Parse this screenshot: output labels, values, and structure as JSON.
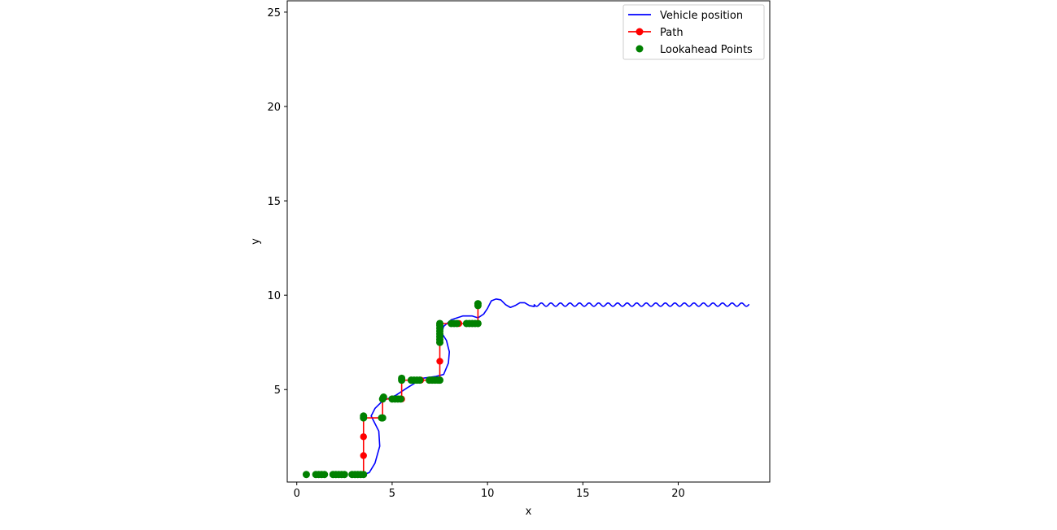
{
  "chart_data": {
    "type": "line",
    "xlabel": "x",
    "ylabel": "y",
    "xlim": [
      -0.5,
      24.8
    ],
    "ylim": [
      0.1,
      25.6
    ],
    "x_ticks": [
      0,
      5,
      10,
      15,
      20
    ],
    "y_ticks": [
      5,
      10,
      15,
      20,
      25
    ],
    "x_tick_labels": [
      "0",
      "5",
      "10",
      "15",
      "20"
    ],
    "y_tick_labels": [
      "5",
      "10",
      "15",
      "20",
      "25"
    ],
    "grid": false,
    "legend_position": "top-right",
    "legend": [
      {
        "label": "Vehicle position",
        "color": "#0000ff",
        "marker": "line"
      },
      {
        "label": "Path",
        "color": "#ff0000",
        "marker": "line-dot"
      },
      {
        "label": "Lookahead Points",
        "color": "#008000",
        "marker": "dot"
      }
    ],
    "series": [
      {
        "name": "Vehicle position",
        "color": "#0000ff",
        "kind": "line",
        "points": [
          [
            3.5,
            0.5
          ],
          [
            3.8,
            0.6
          ],
          [
            4.1,
            1.1
          ],
          [
            4.35,
            2.0
          ],
          [
            4.3,
            2.8
          ],
          [
            4.05,
            3.3
          ],
          [
            3.9,
            3.6
          ],
          [
            4.1,
            4.0
          ],
          [
            4.5,
            4.4
          ],
          [
            5.2,
            4.7
          ],
          [
            5.8,
            5.1
          ],
          [
            6.6,
            5.6
          ],
          [
            7.3,
            5.7
          ],
          [
            7.7,
            5.8
          ],
          [
            7.95,
            6.4
          ],
          [
            8.0,
            7.0
          ],
          [
            7.85,
            7.6
          ],
          [
            7.6,
            8.0
          ],
          [
            7.7,
            8.35
          ],
          [
            8.1,
            8.7
          ],
          [
            8.7,
            8.9
          ],
          [
            9.2,
            8.9
          ],
          [
            9.5,
            8.8
          ],
          [
            9.8,
            9.0
          ],
          [
            10.0,
            9.3
          ],
          [
            10.2,
            9.7
          ],
          [
            10.45,
            9.8
          ],
          [
            10.7,
            9.75
          ],
          [
            10.95,
            9.5
          ],
          [
            11.2,
            9.35
          ],
          [
            11.45,
            9.45
          ],
          [
            11.7,
            9.6
          ],
          [
            11.95,
            9.6
          ],
          [
            12.2,
            9.45
          ],
          [
            12.45,
            9.4
          ]
        ],
        "oscillation": {
          "x_start": 12.45,
          "x_end": 23.7,
          "mean": 9.5,
          "amplitude": 0.09,
          "period": 0.5
        }
      },
      {
        "name": "Path",
        "color": "#ff0000",
        "kind": "line-dot",
        "points": [
          [
            3.5,
            0.5
          ],
          [
            3.5,
            1.5
          ],
          [
            3.5,
            2.5
          ],
          [
            3.5,
            3.5
          ],
          [
            4.5,
            3.5
          ],
          [
            4.5,
            4.5
          ],
          [
            5.5,
            4.5
          ],
          [
            5.5,
            5.5
          ],
          [
            6.5,
            5.5
          ],
          [
            7.5,
            5.5
          ],
          [
            7.5,
            6.5
          ],
          [
            7.5,
            7.5
          ],
          [
            7.5,
            8.5
          ],
          [
            8.5,
            8.5
          ],
          [
            9.5,
            8.5
          ],
          [
            9.5,
            9.5
          ]
        ]
      },
      {
        "name": "Lookahead Points",
        "color": "#008000",
        "kind": "scatter",
        "points": [
          [
            0.5,
            0.5
          ],
          [
            1.0,
            0.5
          ],
          [
            1.15,
            0.5
          ],
          [
            1.3,
            0.5
          ],
          [
            1.45,
            0.5
          ],
          [
            1.9,
            0.5
          ],
          [
            2.05,
            0.5
          ],
          [
            2.2,
            0.5
          ],
          [
            2.35,
            0.5
          ],
          [
            2.5,
            0.5
          ],
          [
            2.9,
            0.5
          ],
          [
            3.05,
            0.5
          ],
          [
            3.2,
            0.5
          ],
          [
            3.35,
            0.5
          ],
          [
            3.5,
            0.5
          ],
          [
            3.5,
            3.5
          ],
          [
            3.5,
            3.6
          ],
          [
            4.45,
            3.5
          ],
          [
            4.5,
            3.5
          ],
          [
            4.5,
            4.5
          ],
          [
            4.55,
            4.6
          ],
          [
            5.0,
            4.5
          ],
          [
            5.15,
            4.5
          ],
          [
            5.3,
            4.5
          ],
          [
            5.45,
            4.5
          ],
          [
            5.5,
            5.5
          ],
          [
            5.5,
            5.6
          ],
          [
            6.0,
            5.5
          ],
          [
            6.15,
            5.5
          ],
          [
            6.3,
            5.5
          ],
          [
            6.45,
            5.5
          ],
          [
            6.95,
            5.5
          ],
          [
            7.1,
            5.5
          ],
          [
            7.25,
            5.5
          ],
          [
            7.4,
            5.5
          ],
          [
            7.5,
            5.5
          ],
          [
            7.5,
            7.5
          ],
          [
            7.5,
            7.65
          ],
          [
            7.5,
            7.8
          ],
          [
            7.5,
            7.95
          ],
          [
            7.5,
            8.1
          ],
          [
            7.5,
            8.25
          ],
          [
            7.5,
            8.4
          ],
          [
            7.5,
            8.5
          ],
          [
            8.1,
            8.5
          ],
          [
            8.25,
            8.5
          ],
          [
            8.4,
            8.5
          ],
          [
            8.9,
            8.5
          ],
          [
            9.05,
            8.5
          ],
          [
            9.2,
            8.5
          ],
          [
            9.35,
            8.5
          ],
          [
            9.5,
            8.5
          ],
          [
            9.5,
            9.45
          ],
          [
            9.5,
            9.55
          ]
        ]
      }
    ]
  }
}
